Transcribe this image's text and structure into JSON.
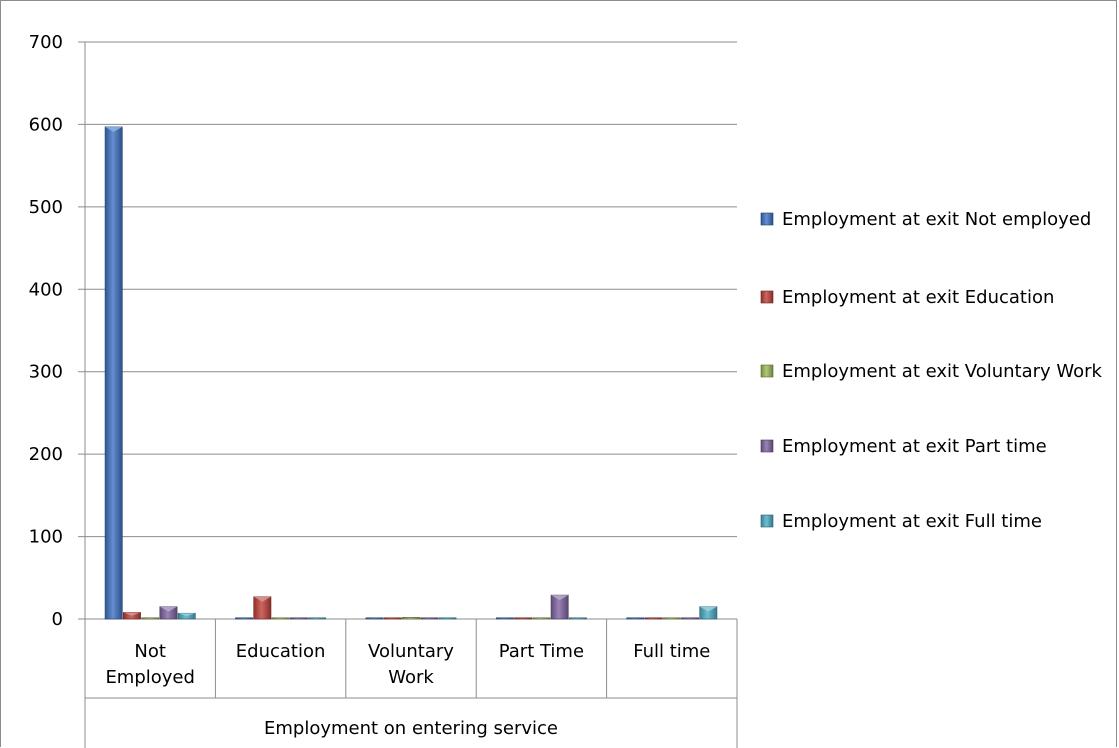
{
  "chart_data": {
    "type": "bar",
    "title": "",
    "ylabel": "",
    "xlabel": "Employment on entering service",
    "ylim": [
      0,
      700
    ],
    "yticks": [
      0,
      100,
      200,
      300,
      400,
      500,
      600,
      700
    ],
    "grid": true,
    "legend_position": "right",
    "categories": [
      "Not Employed",
      "Education",
      "Voluntary Work",
      "Part Time",
      "Full time"
    ],
    "series": [
      {
        "name": "Employment at exit Not employed",
        "color": "#3d72c4",
        "values": [
          597,
          0,
          0,
          1,
          1
        ]
      },
      {
        "name": "Employment at exit Education",
        "color": "#c0403b",
        "values": [
          8,
          27,
          0,
          0,
          0
        ]
      },
      {
        "name": "Employment at exit Voluntary Work",
        "color": "#9bbb59",
        "values": [
          1,
          0,
          2,
          0,
          0
        ]
      },
      {
        "name": "Employment at exit Part time",
        "color": "#8064a2",
        "values": [
          15,
          0,
          0,
          29,
          0
        ]
      },
      {
        "name": "Employment at exit Full time",
        "color": "#4bacc6",
        "values": [
          7,
          0,
          0,
          0,
          15
        ]
      }
    ]
  }
}
